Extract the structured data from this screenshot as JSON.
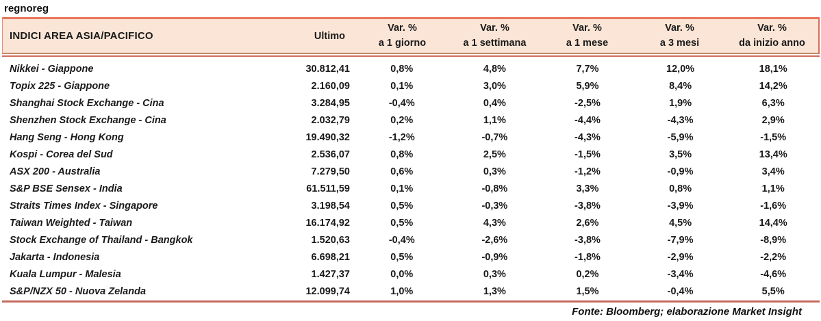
{
  "page_title": "regnoreg",
  "table": {
    "header": {
      "title": "INDICI AREA ASIA/PACIFICO",
      "ultimo": "Ultimo",
      "var_cols": [
        {
          "line1": "Var. %",
          "line2": "a 1 giorno"
        },
        {
          "line1": "Var. %",
          "line2": "a 1 settimana"
        },
        {
          "line1": "Var. %",
          "line2": "a 1 mese"
        },
        {
          "line1": "Var. %",
          "line2": "a 3 mesi"
        },
        {
          "line1": "Var. %",
          "line2": "da inizio anno"
        }
      ]
    },
    "rows": [
      {
        "name": "Nikkei - Giappone",
        "ultimo": "30.812,41",
        "d1": "0,8%",
        "w1": "4,8%",
        "m1": "7,7%",
        "m3": "12,0%",
        "ytd": "18,1%"
      },
      {
        "name": "Topix 225 - Giappone",
        "ultimo": "2.160,09",
        "d1": "0,1%",
        "w1": "3,0%",
        "m1": "5,9%",
        "m3": "8,4%",
        "ytd": "14,2%"
      },
      {
        "name": "Shanghai Stock Exchange - Cina",
        "ultimo": "3.284,95",
        "d1": "-0,4%",
        "w1": "0,4%",
        "m1": "-2,5%",
        "m3": "1,9%",
        "ytd": "6,3%"
      },
      {
        "name": "Shenzhen Stock Exchange - Cina",
        "ultimo": "2.032,79",
        "d1": "0,2%",
        "w1": "1,1%",
        "m1": "-4,4%",
        "m3": "-4,3%",
        "ytd": "2,9%"
      },
      {
        "name": "Hang Seng - Hong Kong",
        "ultimo": "19.490,32",
        "d1": "-1,2%",
        "w1": "-0,7%",
        "m1": "-4,3%",
        "m3": "-5,9%",
        "ytd": "-1,5%"
      },
      {
        "name": "Kospi - Corea del Sud",
        "ultimo": "2.536,07",
        "d1": "0,8%",
        "w1": "2,5%",
        "m1": "-1,5%",
        "m3": "3,5%",
        "ytd": "13,4%"
      },
      {
        "name": "ASX 200 - Australia",
        "ultimo": "7.279,50",
        "d1": "0,6%",
        "w1": "0,3%",
        "m1": "-1,2%",
        "m3": "-0,9%",
        "ytd": "3,4%"
      },
      {
        "name": "S&P BSE Sensex - India",
        "ultimo": "61.511,59",
        "d1": "0,1%",
        "w1": "-0,8%",
        "m1": "3,3%",
        "m3": "0,8%",
        "ytd": "1,1%"
      },
      {
        "name": "Straits Times Index - Singapore",
        "ultimo": "3.198,54",
        "d1": "0,5%",
        "w1": "-0,3%",
        "m1": "-3,8%",
        "m3": "-3,9%",
        "ytd": "-1,6%"
      },
      {
        "name": "Taiwan Weighted - Taiwan",
        "ultimo": "16.174,92",
        "d1": "0,5%",
        "w1": "4,3%",
        "m1": "2,6%",
        "m3": "4,5%",
        "ytd": "14,4%"
      },
      {
        "name": "Stock Exchange of Thailand - Bangkok",
        "ultimo": "1.520,63",
        "d1": "-0,4%",
        "w1": "-2,6%",
        "m1": "-3,8%",
        "m3": "-7,9%",
        "ytd": "-8,9%"
      },
      {
        "name": "Jakarta - Indonesia",
        "ultimo": "6.698,21",
        "d1": "0,5%",
        "w1": "-0,9%",
        "m1": "-1,8%",
        "m3": "-2,9%",
        "ytd": "-2,2%"
      },
      {
        "name": "Kuala Lumpur - Malesia",
        "ultimo": "1.427,37",
        "d1": "0,0%",
        "w1": "0,3%",
        "m1": "0,2%",
        "m3": "-3,4%",
        "ytd": "-4,6%"
      },
      {
        "name": "S&P/NZX 50 - Nuova Zelanda",
        "ultimo": "12.099,74",
        "d1": "1,0%",
        "w1": "1,3%",
        "m1": "1,5%",
        "m3": "-0,4%",
        "ytd": "5,5%"
      }
    ]
  },
  "footer": "Fonte: Bloomberg; elaborazione Market Insight",
  "colors": {
    "header_bg": "#fbe5d6",
    "accent_top_border": "#e8765a",
    "header_underline_tan": "#bf8a68",
    "horizontal_rule": "#c9695c",
    "text": "#1a1a1a"
  }
}
